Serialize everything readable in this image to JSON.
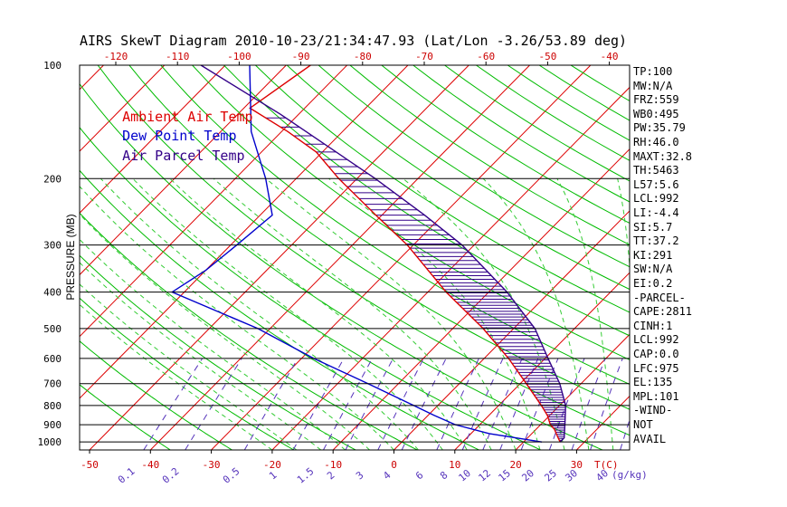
{
  "title": "AIRS SkewT Diagram 2010-10-23/21:34:47.93 (Lat/Lon -3.26/53.89 deg)",
  "legend": [
    {
      "label": "Ambient Air Temp",
      "color": "#dd0000"
    },
    {
      "label": "Dew Point Temp",
      "color": "#0000cc"
    },
    {
      "label": "Air Parcel Temp",
      "color": "#330088"
    }
  ],
  "indices": [
    "TP:100",
    "MW:N/A",
    "FRZ:559",
    "WB0:495",
    "PW:35.79",
    "RH:46.0",
    "MAXT:32.8",
    "TH:5463",
    "L57:5.6",
    "LCL:992",
    "LI:-4.4",
    "SI:5.7",
    "TT:37.2",
    "KI:291",
    "SW:N/A",
    "EI:0.2",
    "-PARCEL-",
    "CAPE:2811",
    "CINH:1",
    "LCL:992",
    "CAP:0.0",
    "LFC:975",
    "EL:135",
    "MPL:101",
    "-WIND-",
    "NOT",
    "AVAIL"
  ],
  "colors": {
    "temp": "#dd0000",
    "dewpoint": "#0000cc",
    "parcel": "#330088",
    "isotherm": "#dd0000",
    "dry_adiabat": "#00bb00",
    "moist_adiabat": "#33cc33",
    "mixing_ratio": "#5533bb",
    "axis_text": "#cc0000"
  },
  "chart_data": {
    "type": "line",
    "title": "AIRS SkewT Diagram 2010-10-23/21:34:47.93 (Lat/Lon -3.26/53.89 deg)",
    "ylabel": "PRESSURE (MB)",
    "xlabel": "T(C)",
    "y_scale": "log",
    "ylim": [
      1050,
      100
    ],
    "pressure_ticks": [
      100,
      200,
      300,
      400,
      500,
      600,
      700,
      800,
      900,
      1000
    ],
    "bottom_temp_ticks": [
      -50,
      -40,
      -30,
      -20,
      -10,
      0,
      10,
      20,
      30
    ],
    "top_temp_ticks": [
      -120,
      -110,
      -100,
      -90,
      -80,
      -70,
      -60,
      -50,
      -40
    ],
    "mixing_ratio_ticks": [
      "0.1",
      "0.2",
      "0.5",
      "1",
      "1.5",
      "2",
      "3",
      "4",
      "6",
      "8",
      "10",
      "12",
      "15",
      "20",
      "25",
      "30",
      "40"
    ],
    "mixing_ratio_label": "(g/kg)",
    "series": [
      {
        "name": "Ambient Air Temp",
        "points": [
          [
            1000,
            26
          ],
          [
            975,
            25
          ],
          [
            950,
            24
          ],
          [
            925,
            23
          ],
          [
            900,
            21.6
          ],
          [
            850,
            19.6
          ],
          [
            800,
            17.0
          ],
          [
            700,
            11.0
          ],
          [
            600,
            4.0
          ],
          [
            500,
            -5.0
          ],
          [
            400,
            -17.0
          ],
          [
            300,
            -31.0
          ],
          [
            250,
            -41.0
          ],
          [
            200,
            -53.0
          ],
          [
            170,
            -61.0
          ],
          [
            150,
            -69.0
          ],
          [
            130,
            -79.0
          ],
          [
            100,
            -76.0
          ]
        ]
      },
      {
        "name": "Dew Point Temp",
        "points": [
          [
            1000,
            23.0
          ],
          [
            975,
            18.0
          ],
          [
            950,
            13.0
          ],
          [
            900,
            6.0
          ],
          [
            850,
            1.0
          ],
          [
            800,
            -4.0
          ],
          [
            700,
            -15.0
          ],
          [
            600,
            -28.0
          ],
          [
            500,
            -42.0
          ],
          [
            400,
            -62.0
          ],
          [
            350,
            -60.0
          ],
          [
            300,
            -59.0
          ],
          [
            250,
            -58.0
          ],
          [
            200,
            -65.0
          ],
          [
            150,
            -75.0
          ],
          [
            100,
            -86.0
          ]
        ]
      },
      {
        "name": "Air Parcel Temp",
        "points": [
          [
            1000,
            26.0
          ],
          [
            975,
            26.0
          ],
          [
            900,
            24.0
          ],
          [
            800,
            21.0
          ],
          [
            700,
            16.5
          ],
          [
            600,
            10.5
          ],
          [
            500,
            3.5
          ],
          [
            400,
            -7.0
          ],
          [
            300,
            -22.0
          ],
          [
            250,
            -33.0
          ],
          [
            200,
            -47.0
          ],
          [
            150,
            -66.0
          ],
          [
            135,
            -73.0
          ],
          [
            100,
            -94.0
          ]
        ]
      }
    ]
  }
}
